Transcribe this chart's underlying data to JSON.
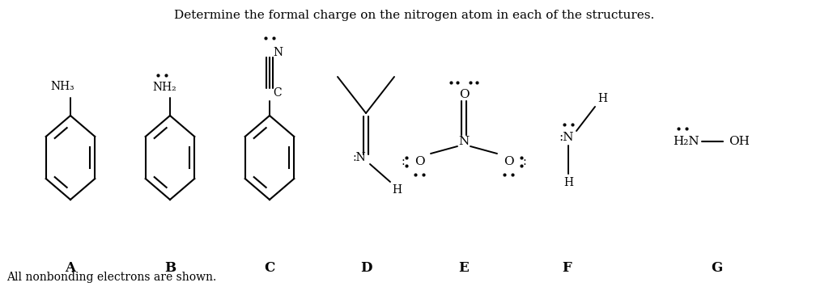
{
  "title": "Determine the formal charge on the nitrogen atom in each of the structures.",
  "footer": "All nonbonding electrons are shown.",
  "labels": [
    "A",
    "B",
    "C",
    "D",
    "E",
    "F",
    "G"
  ],
  "bg_color": "#ffffff",
  "text_color": "#000000",
  "fig_w": 10.24,
  "fig_h": 3.6,
  "dpi": 100
}
